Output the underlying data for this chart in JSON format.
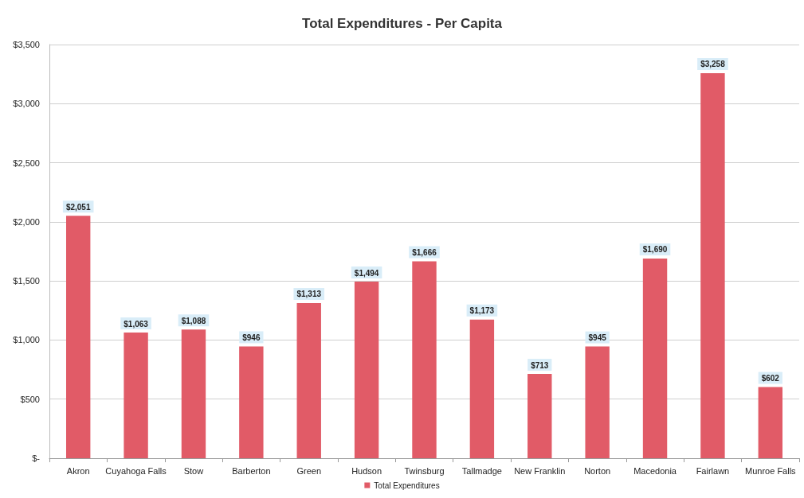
{
  "chart_data": {
    "type": "bar",
    "title": "Total Expenditures - Per Capita",
    "categories": [
      "Akron",
      "Cuyahoga Falls",
      "Stow",
      "Barberton",
      "Green",
      "Hudson",
      "Twinsburg",
      "Tallmadge",
      "New Franklin",
      "Norton",
      "Macedonia",
      "Fairlawn",
      "Munroe Falls"
    ],
    "series": [
      {
        "name": "Total Expenditures",
        "color": "#e15b67",
        "values": [
          2051,
          1063,
          1088,
          946,
          1313,
          1494,
          1666,
          1173,
          713,
          945,
          1690,
          3258,
          602
        ],
        "value_labels": [
          "$2,051",
          "$1,063",
          "$1,088",
          "$946",
          "$1,313",
          "$1,494",
          "$1,666",
          "$1,173",
          "$713",
          "$945",
          "$1,690",
          "$3,258",
          "$602"
        ]
      }
    ],
    "ylim": [
      0,
      3500
    ],
    "yticks": [
      {
        "value": 0,
        "label": "$-"
      },
      {
        "value": 500,
        "label": "$500"
      },
      {
        "value": 1000,
        "label": "$1,000"
      },
      {
        "value": 1500,
        "label": "$1,500"
      },
      {
        "value": 2000,
        "label": "$2,000"
      },
      {
        "value": 2500,
        "label": "$2,500"
      },
      {
        "value": 3000,
        "label": "$3,000"
      },
      {
        "value": 3500,
        "label": "$3,500"
      }
    ],
    "grid": "y",
    "legend": "bottom"
  }
}
